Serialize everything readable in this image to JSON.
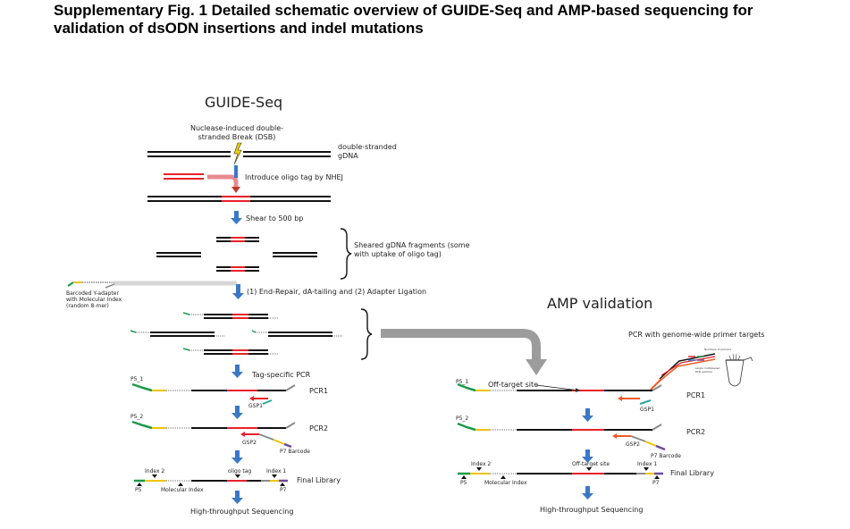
{
  "title": "Supplementary Fig. 1 Detailed schematic overview of GUIDE-Seq and AMP-based sequencing for validation of dsODN insertions and indel mutations",
  "guide": {
    "heading": "GUIDE-Seq",
    "dsb_label": "Nuclease-induced double-stranded Break (DSB)",
    "gdna_label": "double-stranded gDNA",
    "introduce": "Introduce oligo tag by NHEJ",
    "shear": "Shear to 500 bp",
    "sheared": "Sheared gDNA fragments (some with uptake of oligo tag)",
    "end_repair": "(1) End-Repair, dA-tailing and (2) Adapter Ligation",
    "adapter_label": "Barcoded Y-adapter with Molecular Index (random 8-mer)",
    "tag_pcr": "Tag-specific PCR",
    "p5_1": "P5_1",
    "p5_2": "P5_2",
    "gsp1": "GSP1",
    "gsp2": "GSP2",
    "pcr1": "PCR1",
    "pcr2": "PCR2",
    "p7_barcode": "P7 Barcode",
    "index2": "Index 2",
    "oligo_tag": "oligo tag",
    "index1": "Index 1",
    "p5": "P5",
    "molecular_index": "Molecular Index",
    "p7": "P7",
    "final_library": "Final Library",
    "hts": "High-throughput Sequencing"
  },
  "amp": {
    "heading": "AMP validation",
    "pcr_targets": "PCR with genome-wide primer targets",
    "numbers_of_primers": "Numbers of primers",
    "single_multiplexed": "single multiplexed PCR reaction",
    "off_target_site": "Off-target site",
    "p5_1": "P5_1",
    "p5_2": "P5_2",
    "gsp1": "GSP1",
    "gsp2": "GSP2",
    "pcr1": "PCR1",
    "pcr2": "PCR2",
    "p7_barcode": "P7 Barcode",
    "index2": "Index 2",
    "off_target_site2": "Off-target site",
    "index1": "Index 1",
    "p5": "P5",
    "molecular_index": "Molecular Index",
    "p7": "P7",
    "final_library": "Final Library",
    "hts": "High-throughput Sequencing"
  },
  "colors": {
    "dna": "#111111",
    "tag": "#e8202a",
    "arrow": "#3a78c6",
    "gray_arrow": "#999999",
    "p5_green": "#1a9a4a",
    "index_yellow": "#f2c200",
    "adapter_gray": "#8a8a8a",
    "p7_purple": "#6a4c9c",
    "primer_orange": "#f05a24",
    "teal": "#2aa89a"
  },
  "icons": {
    "lightning": "lightning-icon",
    "tube": "pcr-tube-icon"
  }
}
